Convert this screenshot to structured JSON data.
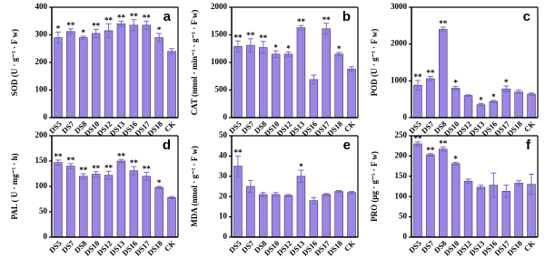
{
  "chart_data": [
    {
      "type": "bar",
      "panel_label": "a",
      "ylabel": "SOD (U · g⁻¹ · F w)",
      "color": "#9b86e3",
      "categories": [
        "DS5",
        "DS7",
        "DS8",
        "DS10",
        "DS12",
        "DS13",
        "DS16",
        "DS17",
        "DS18",
        "CK"
      ],
      "values": [
        290,
        312,
        290,
        305,
        315,
        340,
        335,
        335,
        290,
        240
      ],
      "error": [
        20,
        10,
        5,
        15,
        25,
        10,
        20,
        15,
        15,
        10
      ],
      "significance": [
        "*",
        "**",
        "*",
        "**",
        "**",
        "**",
        "**",
        "**",
        "*",
        null
      ],
      "ylim": [
        0,
        400
      ],
      "yticks": [
        0,
        100,
        200,
        300,
        400
      ]
    },
    {
      "type": "bar",
      "panel_label": "b",
      "ylabel": "CAT (nmol · min⁻¹ · g⁻¹ · F w)",
      "color": "#9b86e3",
      "categories": [
        "DS5",
        "DS7",
        "DS8",
        "DS10",
        "DS12",
        "DS13",
        "DS16",
        "DS17",
        "DS18",
        "CK"
      ],
      "values": [
        1290,
        1310,
        1270,
        1150,
        1150,
        1630,
        690,
        1610,
        1150,
        880
      ],
      "error": [
        100,
        120,
        110,
        60,
        40,
        40,
        80,
        100,
        30,
        40
      ],
      "significance": [
        "**",
        "**",
        "**",
        "*",
        "*",
        "**",
        null,
        "**",
        "*",
        null
      ],
      "ylim": [
        0,
        2000
      ],
      "yticks": [
        0,
        500,
        1000,
        1500,
        2000
      ]
    },
    {
      "type": "bar",
      "panel_label": "c",
      "ylabel": "POD (U · g⁻¹ · F w)",
      "color": "#9b86e3",
      "categories": [
        "DS5",
        "DS7",
        "DS8",
        "DS10",
        "DS12",
        "DS13",
        "DS16",
        "DS17",
        "DS18",
        "CK"
      ],
      "values": [
        880,
        1060,
        2400,
        800,
        600,
        350,
        440,
        780,
        700,
        640
      ],
      "error": [
        130,
        60,
        60,
        50,
        20,
        30,
        30,
        80,
        50,
        30
      ],
      "significance": [
        "**",
        "**",
        "**",
        "*",
        null,
        "*",
        "*",
        "*",
        null,
        null
      ],
      "ylim": [
        0,
        3000
      ],
      "yticks": [
        0,
        1000,
        2000,
        3000
      ]
    },
    {
      "type": "bar",
      "panel_label": "d",
      "ylabel": "PAL ( U · mg⁻¹ · h)",
      "color": "#9b86e3",
      "categories": [
        "DS5",
        "DS7",
        "DS8",
        "DS10",
        "DS12",
        "DS13",
        "DS16",
        "DS17",
        "DS18",
        "CK"
      ],
      "values": [
        147,
        140,
        120,
        124,
        122,
        150,
        131,
        120,
        98,
        78
      ],
      "error": [
        5,
        5,
        5,
        5,
        8,
        3,
        8,
        8,
        2,
        2
      ],
      "significance": [
        "**",
        "**",
        "**",
        "**",
        "**",
        "**",
        "**",
        "**",
        "*",
        null
      ],
      "ylim": [
        0,
        200
      ],
      "yticks": [
        0,
        50,
        100,
        150,
        200
      ]
    },
    {
      "type": "bar",
      "panel_label": "e",
      "ylabel": "MDA (nmol · g⁻¹ · F w)",
      "color": "#9b86e3",
      "categories": [
        "DS5",
        "DS7",
        "DS8",
        "DS10",
        "DS12",
        "DS13",
        "DS16",
        "DS17",
        "DS18",
        "CK"
      ],
      "values": [
        35,
        25,
        21,
        21,
        20.5,
        30,
        18,
        21,
        22.5,
        22
      ],
      "error": [
        5,
        3,
        1,
        1,
        0.5,
        3,
        1.5,
        0.5,
        0.5,
        0.5
      ],
      "significance": [
        "**",
        null,
        null,
        null,
        null,
        "*",
        null,
        null,
        null,
        null
      ],
      "ylim": [
        0,
        50
      ],
      "yticks": [
        0,
        10,
        20,
        30,
        40,
        50
      ]
    },
    {
      "type": "bar",
      "panel_label": "f",
      "ylabel": "PRO (μg · g⁻¹ · F w)",
      "color": "#9b86e3",
      "categories": [
        "DS5",
        "DS7",
        "DS8",
        "DS10",
        "DS12",
        "DS13",
        "DS16",
        "DS17",
        "DS18",
        "CK"
      ],
      "values": [
        230,
        203,
        217,
        181,
        138,
        123,
        128,
        113,
        133,
        130
      ],
      "error": [
        5,
        3,
        5,
        3,
        5,
        5,
        30,
        15,
        6,
        25
      ],
      "significance": [
        "**",
        "**",
        "**",
        "*",
        null,
        null,
        null,
        null,
        null,
        null
      ],
      "ylim": [
        0,
        250
      ],
      "yticks": [
        0,
        50,
        100,
        150,
        200,
        250
      ]
    }
  ]
}
